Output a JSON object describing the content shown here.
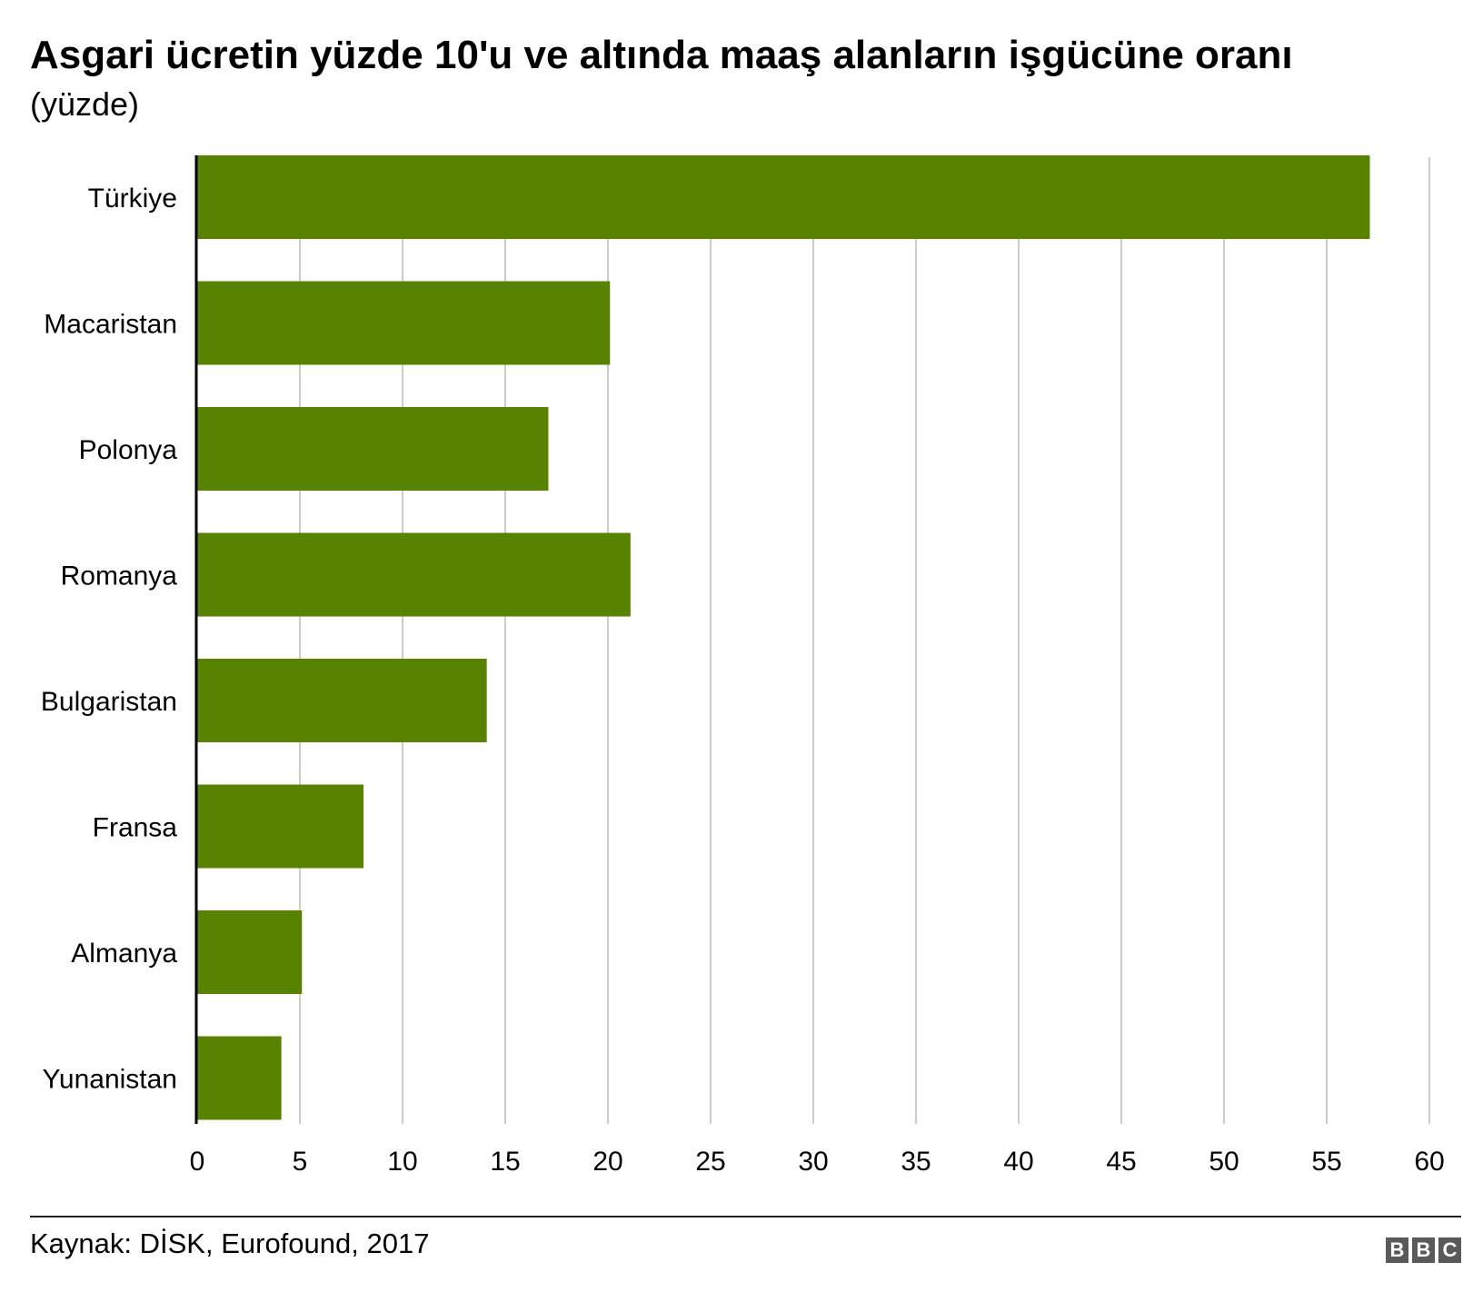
{
  "header": {
    "title": "Asgari ücretin yüzde 10'u ve altında maaş alanların işgücüne oranı",
    "subtitle": "(yüzde)"
  },
  "footer": {
    "source": "Kaynak: DİSK, Eurofound, 2017",
    "logo_letters": [
      "B",
      "B",
      "C"
    ]
  },
  "colors": {
    "bar": "#588300",
    "grid": "#cccccc",
    "axis": "#000000"
  },
  "chart_data": {
    "type": "bar",
    "orientation": "horizontal",
    "categories": [
      "Türkiye",
      "Macaristan",
      "Polonya",
      "Romanya",
      "Bulgaristan",
      "Fransa",
      "Almanya",
      "Yunanistan"
    ],
    "values": [
      57.1,
      20.1,
      17.1,
      21.1,
      14.1,
      8.1,
      5.1,
      4.1
    ],
    "xlim": [
      0,
      60
    ],
    "xticks": [
      "0",
      "5",
      "10",
      "15",
      "20",
      "25",
      "30",
      "35",
      "40",
      "45",
      "50",
      "55",
      "60"
    ],
    "grid": true,
    "legend": "none"
  }
}
